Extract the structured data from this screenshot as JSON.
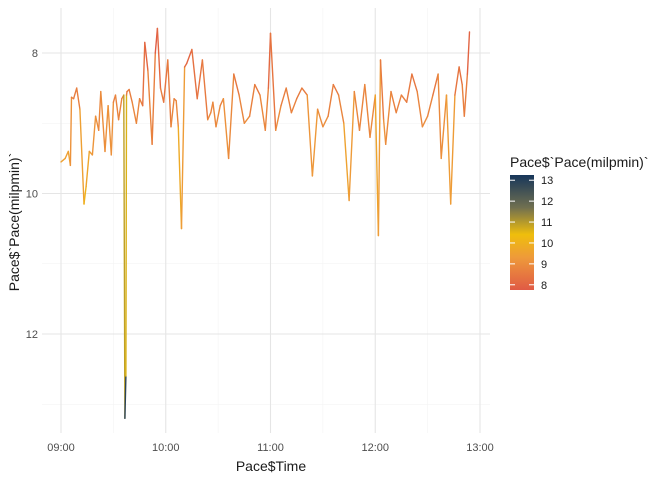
{
  "chart_data": {
    "type": "line",
    "title": "",
    "xlabel": "Pace$Time",
    "ylabel": "Pace$`Pace(milpmin)`",
    "legend_title": "Pace$`Pace(milpmin)`",
    "legend_position": "right",
    "grid": true,
    "y_reversed": true,
    "x_ticks": [
      9,
      10,
      11,
      12,
      13
    ],
    "x_tick_labels": [
      "09:00",
      "10:00",
      "11:00",
      "12:00",
      "13:00"
    ],
    "y_ticks": [
      8,
      10,
      12
    ],
    "y_tick_labels": [
      "8",
      "10",
      "12"
    ],
    "legend_ticks": [
      8,
      9,
      10,
      11,
      12,
      13
    ],
    "legend_tick_labels": [
      "8",
      "9",
      "10",
      "11",
      "12",
      "13"
    ],
    "color_scale": {
      "min": 7.75,
      "max": 13.25,
      "stops": [
        {
          "v": 7.75,
          "c": "#e05a45"
        },
        {
          "v": 9.3,
          "c": "#ee9a3a"
        },
        {
          "v": 10.4,
          "c": "#efbe0c"
        },
        {
          "v": 11.7,
          "c": "#706f50"
        },
        {
          "v": 13.25,
          "c": "#17365a"
        }
      ]
    },
    "series": [
      {
        "x": [
          9.0,
          9.04,
          9.07,
          9.09,
          9.1,
          9.12,
          9.15,
          9.18,
          9.22,
          9.24,
          9.27,
          9.3,
          9.33,
          9.36,
          9.38,
          9.42,
          9.45,
          9.48,
          9.5,
          9.52,
          9.55,
          9.58,
          9.6,
          9.61,
          9.62,
          9.625,
          9.63,
          9.65,
          9.68,
          9.72,
          9.75,
          9.78,
          9.8,
          9.83,
          9.87,
          9.9,
          9.92,
          9.95,
          9.98,
          10.02,
          10.05,
          10.08,
          10.1,
          10.12,
          10.15,
          10.18,
          10.2,
          10.25,
          10.3,
          10.35,
          10.4,
          10.43,
          10.45,
          10.48,
          10.52,
          10.55,
          10.6,
          10.65,
          10.7,
          10.75,
          10.8,
          10.85,
          10.9,
          10.95,
          10.98,
          11.0,
          11.05,
          11.1,
          11.15,
          11.2,
          11.25,
          11.3,
          11.35,
          11.4,
          11.45,
          11.5,
          11.55,
          11.6,
          11.65,
          11.7,
          11.75,
          11.8,
          11.85,
          11.9,
          11.95,
          12.0,
          12.03,
          12.05,
          12.08,
          12.1,
          12.15,
          12.2,
          12.25,
          12.3,
          12.35,
          12.4,
          12.45,
          12.5,
          12.55,
          12.6,
          12.63,
          12.68,
          12.72,
          12.76,
          12.8,
          12.83,
          12.85,
          12.88,
          12.9
        ],
        "y": [
          9.55,
          9.5,
          9.4,
          9.6,
          8.63,
          8.65,
          8.5,
          8.8,
          10.15,
          9.9,
          9.4,
          9.45,
          8.9,
          9.1,
          8.55,
          9.4,
          8.75,
          9.45,
          8.7,
          8.6,
          8.95,
          8.65,
          8.6,
          13.2,
          12.6,
          8.6,
          8.55,
          8.52,
          8.7,
          9.0,
          8.65,
          8.75,
          7.85,
          8.25,
          9.3,
          8.0,
          7.65,
          8.5,
          8.7,
          8.1,
          9.05,
          8.65,
          8.68,
          9.05,
          10.5,
          8.2,
          8.15,
          7.95,
          8.65,
          8.1,
          8.95,
          8.85,
          8.7,
          9.05,
          8.75,
          8.65,
          9.5,
          8.3,
          8.6,
          9.0,
          8.9,
          8.45,
          8.6,
          9.1,
          8.5,
          7.72,
          9.1,
          8.75,
          8.5,
          8.85,
          8.65,
          8.5,
          8.6,
          9.75,
          8.8,
          9.05,
          8.9,
          8.45,
          8.6,
          9.0,
          10.1,
          8.55,
          9.1,
          8.45,
          9.2,
          8.6,
          10.6,
          8.1,
          8.95,
          9.3,
          8.55,
          8.85,
          8.6,
          8.7,
          8.3,
          8.55,
          9.05,
          8.9,
          8.6,
          8.3,
          9.5,
          8.6,
          10.15,
          8.6,
          8.2,
          8.45,
          8.9,
          8.3,
          7.7
        ]
      }
    ]
  }
}
